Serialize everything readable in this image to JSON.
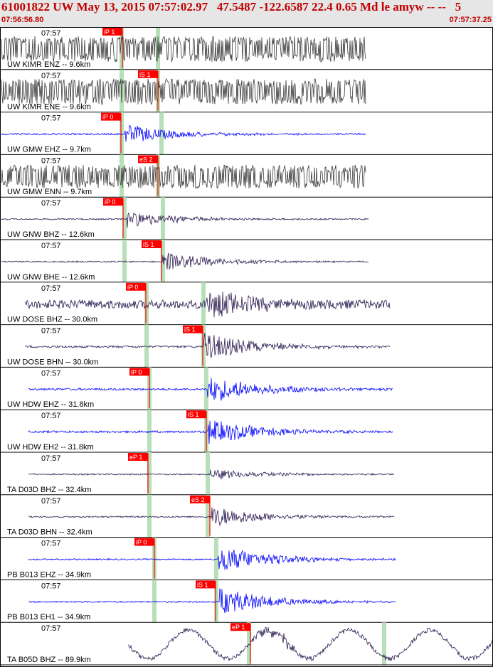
{
  "header": {
    "title": "61001822 UW May 13, 2015 07:57:02.97   47.5487 -122.6587 22.4 0.65 Md le amyw -- --   5",
    "start_time": "07:56:56.80",
    "end_time": "07:57:37.25"
  },
  "colors": {
    "header_bg": "#e6e6e6",
    "title": "#c00000",
    "pick_box": "#ff0000",
    "window": "#b8e0b8",
    "trace_blue": "#0000ff",
    "trace_dark": "#2a1a50",
    "trace_gray": "#3a3a3a"
  },
  "traces": [
    {
      "station_label": "UW KIMR ENZ -- 9.6km",
      "time_label": "07:57",
      "pick_label": "iP 1",
      "color": "#3a3a3a"
    },
    {
      "station_label": "UW KIMR ENE -- 9.6km",
      "time_label": "07:57",
      "pick_label": "iS 1",
      "color": "#3a3a3a"
    },
    {
      "station_label": "UW GMW EHZ -- 9.7km",
      "time_label": "07:57",
      "pick_label": "iP 0",
      "color": "#0000ff"
    },
    {
      "station_label": "UW GMW ENN -- 9.7km",
      "time_label": "07:57",
      "pick_label": "eS 2",
      "color": "#3a3a3a"
    },
    {
      "station_label": "UW GNW BHZ -- 12.6km",
      "time_label": "07:57",
      "pick_label": "iP 0",
      "color": "#2a1a50"
    },
    {
      "station_label": "UW GNW BHE -- 12.6km",
      "time_label": "07:57",
      "pick_label": "iS 1",
      "color": "#2a1a50"
    },
    {
      "station_label": "UW DOSE BHZ -- 30.0km",
      "time_label": "07:57",
      "pick_label": "iP 0",
      "color": "#2a1a50"
    },
    {
      "station_label": "UW DOSE BHN -- 30.0km",
      "time_label": "07:57",
      "pick_label": "iS 1",
      "color": "#2a1a50"
    },
    {
      "station_label": "UW HDW EHZ -- 31.8km",
      "time_label": "07:57",
      "pick_label": "iP 0",
      "color": "#0000ff"
    },
    {
      "station_label": "UW HDW EH2 -- 31.8km",
      "time_label": "07:57",
      "pick_label": "iS 1",
      "color": "#0000ff"
    },
    {
      "station_label": "TA D03D BHZ -- 32.4km",
      "time_label": "07:57",
      "pick_label": "eP 1",
      "color": "#2a1a50"
    },
    {
      "station_label": "TA D03D BHN -- 32.4km",
      "time_label": "07:57",
      "pick_label": "eS 2",
      "color": "#2a1a50"
    },
    {
      "station_label": "PB B013 EHZ -- 34.9km",
      "time_label": "07:57",
      "pick_label": "iP 0",
      "color": "#0000ff"
    },
    {
      "station_label": "PB B013 EH1 -- 34.9km",
      "time_label": "07:57",
      "pick_label": "iS 1",
      "color": "#0000ff"
    },
    {
      "station_label": "TA B05D BHZ -- 89.9km",
      "time_label": "07:57",
      "pick_label": "eP 1",
      "color": "#2a1a50"
    }
  ]
}
